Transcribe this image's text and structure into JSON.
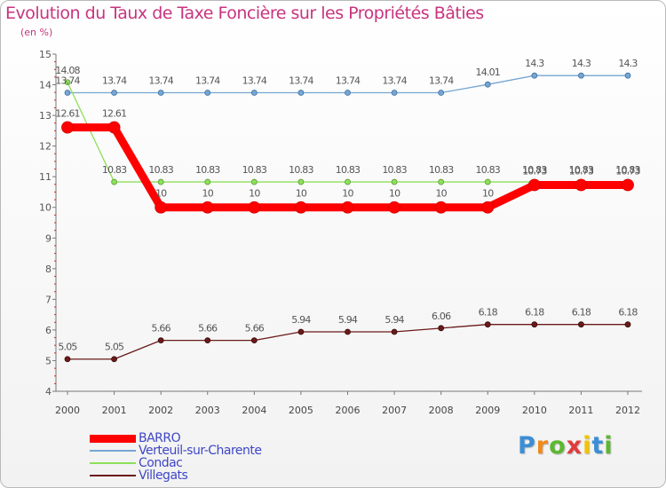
{
  "chart_data": {
    "type": "line",
    "title": "Evolution du Taux de Taxe Foncière sur les Propriétés Bâties",
    "ylabel": "(en %)",
    "xlabel": "",
    "x": [
      "2000",
      "2001",
      "2002",
      "2003",
      "2004",
      "2005",
      "2006",
      "2007",
      "2008",
      "2009",
      "2010",
      "2011",
      "2012"
    ],
    "ylim": [
      4,
      15
    ],
    "yticks": [
      "4",
      "5",
      "6",
      "7",
      "8",
      "9",
      "10",
      "11",
      "12",
      "13",
      "14",
      "15"
    ],
    "grid": false,
    "legend_position": "bottom-left",
    "series": [
      {
        "name": "BARRO",
        "color": "#ff0000",
        "values": [
          12.61,
          12.61,
          10,
          10,
          10,
          10,
          10,
          10,
          10,
          10,
          10.73,
          10.73,
          10.73
        ],
        "labels": [
          "12.61",
          "12.61",
          "10",
          "10",
          "10",
          "10",
          "10",
          "10",
          "10",
          "10",
          "10.73",
          "10.73",
          "10.73"
        ]
      },
      {
        "name": "Verteuil-sur-Charente",
        "color": "#75a6d3",
        "values": [
          13.74,
          13.74,
          13.74,
          13.74,
          13.74,
          13.74,
          13.74,
          13.74,
          13.74,
          14.01,
          14.3,
          14.3,
          14.3
        ],
        "labels": [
          "13.74",
          "13.74",
          "13.74",
          "13.74",
          "13.74",
          "13.74",
          "13.74",
          "13.74",
          "13.74",
          "14.01",
          "14.3",
          "14.3",
          "14.3"
        ]
      },
      {
        "name": "Condac",
        "color": "#8ee05a",
        "values": [
          14.08,
          10.83,
          10.83,
          10.83,
          10.83,
          10.83,
          10.83,
          10.83,
          10.83,
          10.83,
          10.83,
          10.83,
          10.83
        ],
        "labels": [
          "14.08",
          "10.83",
          "10.83",
          "10.83",
          "10.83",
          "10.83",
          "10.83",
          "10.83",
          "10.83",
          "10.83",
          "10.83",
          "10.83",
          "10.83"
        ]
      },
      {
        "name": "Villegats",
        "color": "#6b1a1a",
        "values": [
          5.05,
          5.05,
          5.66,
          5.66,
          5.66,
          5.94,
          5.94,
          5.94,
          6.06,
          6.18,
          6.18,
          6.18,
          6.18
        ],
        "labels": [
          "5.05",
          "5.05",
          "5.66",
          "5.66",
          "5.66",
          "5.94",
          "5.94",
          "5.94",
          "6.06",
          "6.18",
          "6.18",
          "6.18",
          "6.18"
        ]
      }
    ]
  },
  "brand": {
    "text": "Proxiti",
    "letters": [
      "P",
      "r",
      "o",
      "x",
      "i",
      "t",
      "i"
    ],
    "colors": [
      "#3a8fd6",
      "#f08a1c",
      "#5cb82e",
      "#e23a3a",
      "#f2c300",
      "#3a8fd6",
      "#5cb82e"
    ]
  }
}
